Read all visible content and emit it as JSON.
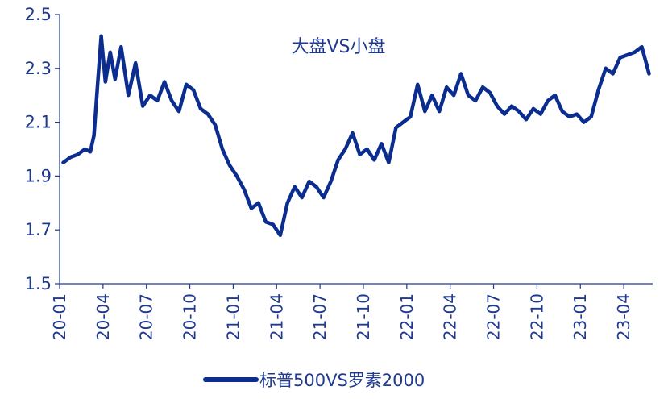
{
  "chart_data": {
    "type": "line",
    "title": "",
    "annotation": "大盘VS小盘",
    "xlabel": "",
    "ylabel": "",
    "ylim": [
      1.5,
      2.5
    ],
    "y_ticks": [
      "1.5",
      "1.7",
      "1.9",
      "2.1",
      "2.3",
      "2.5"
    ],
    "x_ticks": [
      "20-01",
      "20-04",
      "20-07",
      "20-10",
      "21-01",
      "21-04",
      "21-07",
      "21-10",
      "22-01",
      "22-04",
      "22-07",
      "22-10",
      "23-01",
      "23-04"
    ],
    "grid": false,
    "legend_position": "bottom",
    "series": [
      {
        "name": "标普500VS罗素2000",
        "color": "#0a2d8f",
        "points": [
          [
            "20-01",
            1.95
          ],
          [
            "20-01",
            1.97
          ],
          [
            "20-02",
            1.98
          ],
          [
            "20-02",
            2.0
          ],
          [
            "20-03",
            1.99
          ],
          [
            "20-03",
            2.05
          ],
          [
            "20-03",
            2.24
          ],
          [
            "20-03",
            2.42
          ],
          [
            "20-04",
            2.25
          ],
          [
            "20-04",
            2.36
          ],
          [
            "20-04",
            2.26
          ],
          [
            "20-05",
            2.38
          ],
          [
            "20-05",
            2.2
          ],
          [
            "20-06",
            2.32
          ],
          [
            "20-06",
            2.16
          ],
          [
            "20-07",
            2.2
          ],
          [
            "20-07",
            2.18
          ],
          [
            "20-08",
            2.25
          ],
          [
            "20-08",
            2.18
          ],
          [
            "20-09",
            2.14
          ],
          [
            "20-09",
            2.24
          ],
          [
            "20-10",
            2.22
          ],
          [
            "20-10",
            2.15
          ],
          [
            "20-11",
            2.13
          ],
          [
            "20-11",
            2.09
          ],
          [
            "20-12",
            2.0
          ],
          [
            "20-12",
            1.94
          ],
          [
            "21-01",
            1.9
          ],
          [
            "21-01",
            1.85
          ],
          [
            "21-02",
            1.78
          ],
          [
            "21-02",
            1.8
          ],
          [
            "21-03",
            1.73
          ],
          [
            "21-03",
            1.72
          ],
          [
            "21-04",
            1.68
          ],
          [
            "21-04",
            1.8
          ],
          [
            "21-05",
            1.86
          ],
          [
            "21-05",
            1.82
          ],
          [
            "21-06",
            1.88
          ],
          [
            "21-06",
            1.86
          ],
          [
            "21-07",
            1.82
          ],
          [
            "21-07",
            1.88
          ],
          [
            "21-08",
            1.96
          ],
          [
            "21-08",
            2.0
          ],
          [
            "21-09",
            2.06
          ],
          [
            "21-09",
            1.98
          ],
          [
            "21-10",
            2.0
          ],
          [
            "21-10",
            1.96
          ],
          [
            "21-11",
            2.02
          ],
          [
            "21-11",
            1.95
          ],
          [
            "21-12",
            2.08
          ],
          [
            "21-12",
            2.1
          ],
          [
            "22-01",
            2.12
          ],
          [
            "22-01",
            2.24
          ],
          [
            "22-02",
            2.14
          ],
          [
            "22-02",
            2.2
          ],
          [
            "22-03",
            2.14
          ],
          [
            "22-03",
            2.23
          ],
          [
            "22-04",
            2.2
          ],
          [
            "22-04",
            2.28
          ],
          [
            "22-05",
            2.2
          ],
          [
            "22-05",
            2.18
          ],
          [
            "22-06",
            2.23
          ],
          [
            "22-06",
            2.21
          ],
          [
            "22-07",
            2.16
          ],
          [
            "22-07",
            2.13
          ],
          [
            "22-08",
            2.16
          ],
          [
            "22-08",
            2.14
          ],
          [
            "22-09",
            2.11
          ],
          [
            "22-09",
            2.15
          ],
          [
            "22-10",
            2.13
          ],
          [
            "22-10",
            2.18
          ],
          [
            "22-11",
            2.2
          ],
          [
            "22-11",
            2.14
          ],
          [
            "22-12",
            2.12
          ],
          [
            "22-12",
            2.13
          ],
          [
            "23-01",
            2.1
          ],
          [
            "23-01",
            2.12
          ],
          [
            "23-02",
            2.22
          ],
          [
            "23-02",
            2.3
          ],
          [
            "23-03",
            2.28
          ],
          [
            "23-03",
            2.34
          ],
          [
            "23-04",
            2.35
          ],
          [
            "23-04",
            2.36
          ],
          [
            "23-05",
            2.38
          ],
          [
            "23-05",
            2.28
          ]
        ]
      }
    ]
  }
}
